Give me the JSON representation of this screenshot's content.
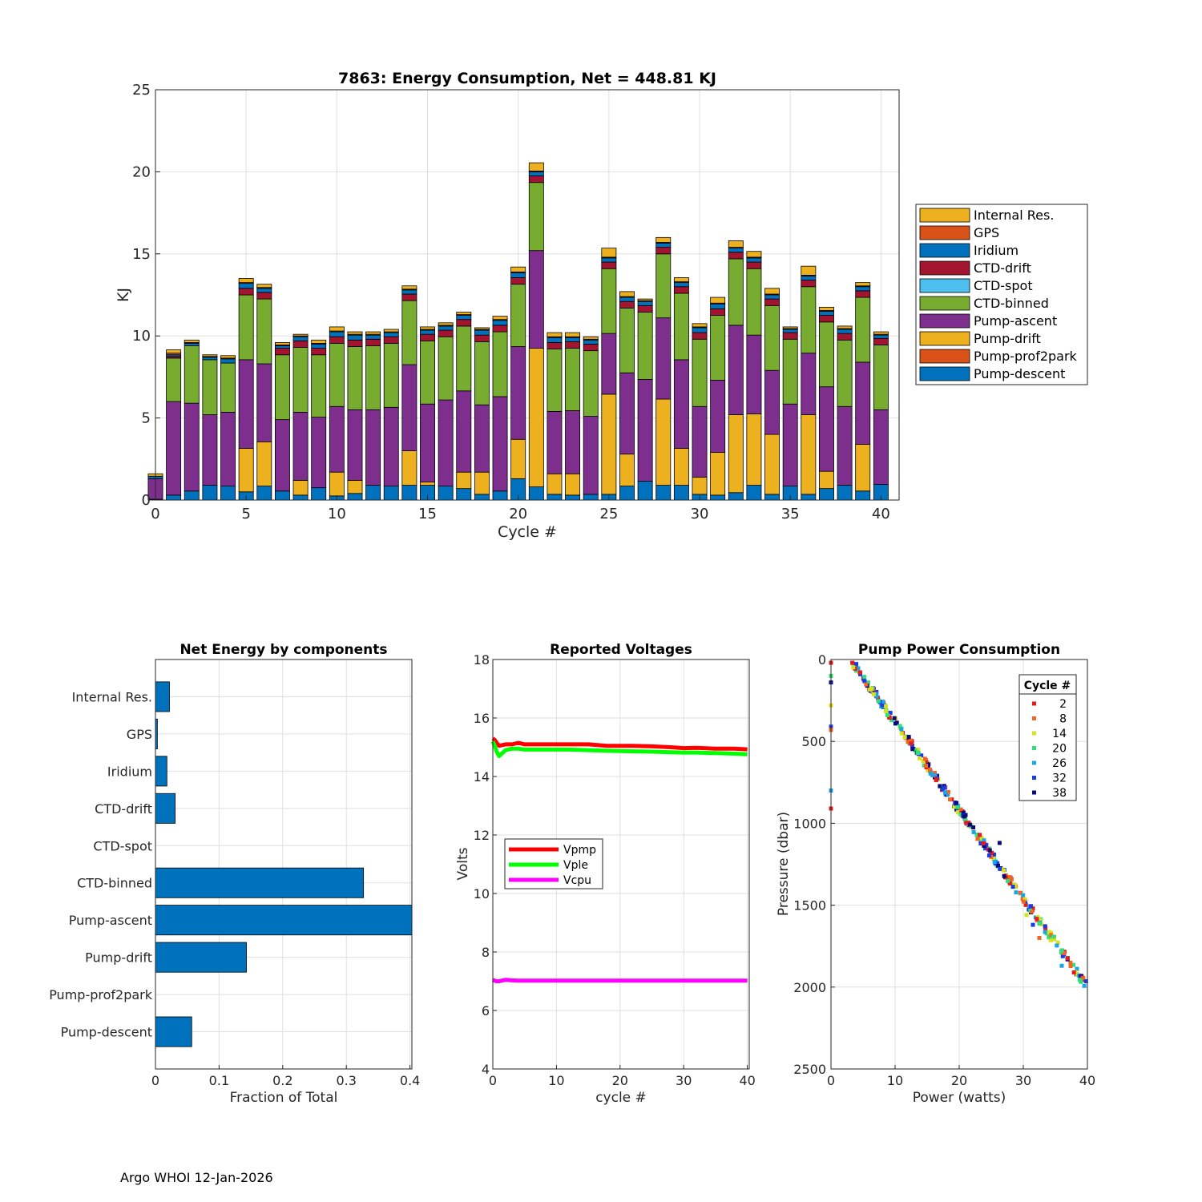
{
  "footer": "Argo WHOI 12-Jan-2026",
  "chart_data": [
    {
      "type": "bar",
      "stacked": true,
      "title": "7863: Energy Consumption,  Net = 448.81 KJ",
      "xlabel": "Cycle #",
      "ylabel": "KJ",
      "xlim": [
        0,
        41
      ],
      "ylim": [
        0,
        25
      ],
      "xticks": [
        0,
        5,
        10,
        15,
        20,
        25,
        30,
        35,
        40
      ],
      "yticks": [
        0,
        5,
        10,
        15,
        20,
        25
      ],
      "grid": true,
      "legend_position": "outside-right",
      "legend_order": [
        "Internal Res.",
        "GPS",
        "Iridium",
        "CTD-drift",
        "CTD-spot",
        "CTD-binned",
        "Pump-ascent",
        "Pump-drift",
        "Pump-prof2park",
        "Pump-descent"
      ],
      "categories": [
        0,
        1,
        2,
        3,
        4,
        5,
        6,
        7,
        8,
        9,
        10,
        11,
        12,
        13,
        14,
        15,
        16,
        17,
        18,
        19,
        20,
        21,
        22,
        23,
        24,
        25,
        26,
        27,
        28,
        29,
        30,
        31,
        32,
        33,
        34,
        35,
        36,
        37,
        38,
        39,
        40
      ],
      "series": [
        {
          "name": "Pump-descent",
          "color": "#0072BD",
          "values": [
            0.05,
            0.3,
            0.55,
            0.9,
            0.85,
            0.5,
            0.85,
            0.55,
            0.3,
            0.75,
            0.25,
            0.4,
            0.9,
            0.85,
            0.9,
            0.9,
            0.85,
            0.7,
            0.35,
            0.55,
            1.3,
            0.8,
            0.35,
            0.3,
            0.35,
            0.35,
            0.85,
            1.15,
            0.9,
            0.9,
            0.35,
            0.3,
            0.45,
            0.9,
            0.35,
            0.85,
            0.35,
            0.7,
            0.9,
            0.55,
            0.95
          ]
        },
        {
          "name": "Pump-prof2park",
          "color": "#D95319",
          "values": [
            0,
            0,
            0,
            0,
            0,
            0,
            0,
            0,
            0,
            0,
            0,
            0,
            0,
            0,
            0,
            0,
            0,
            0,
            0,
            0,
            0,
            0,
            0,
            0,
            0,
            0,
            0,
            0,
            0,
            0,
            0,
            0,
            0,
            0,
            0,
            0,
            0,
            0,
            0,
            0,
            0
          ]
        },
        {
          "name": "Pump-drift",
          "color": "#EDB120",
          "values": [
            0,
            0,
            0,
            0,
            0,
            2.65,
            2.7,
            0,
            0.9,
            0,
            1.45,
            0.8,
            0,
            0,
            2.1,
            0.2,
            0,
            1.0,
            1.35,
            0,
            2.4,
            8.45,
            1.25,
            1.3,
            0,
            6.1,
            1.95,
            0,
            5.25,
            2.25,
            1.05,
            2.6,
            4.75,
            4.35,
            3.65,
            0,
            4.85,
            1.05,
            0,
            2.85,
            0
          ]
        },
        {
          "name": "Pump-ascent",
          "color": "#7E2F8E",
          "values": [
            1.25,
            5.7,
            5.35,
            4.3,
            4.5,
            5.4,
            4.75,
            4.35,
            4.15,
            4.3,
            4.0,
            4.3,
            4.6,
            4.8,
            5.25,
            4.75,
            5.25,
            4.95,
            4.1,
            5.75,
            5.65,
            5.95,
            3.8,
            3.85,
            4.75,
            3.7,
            4.95,
            6.2,
            4.95,
            5.4,
            4.3,
            4.4,
            5.45,
            4.8,
            3.9,
            5.0,
            3.75,
            5.15,
            4.8,
            5.0,
            4.55
          ]
        },
        {
          "name": "CTD-binned",
          "color": "#77AC30",
          "values": [
            0,
            2.65,
            3.5,
            3.35,
            3.0,
            3.95,
            3.95,
            3.95,
            3.95,
            3.8,
            3.85,
            3.85,
            3.9,
            3.9,
            3.9,
            3.85,
            3.85,
            3.95,
            3.85,
            3.95,
            3.8,
            4.15,
            3.8,
            3.8,
            4.0,
            3.95,
            3.95,
            4.1,
            3.9,
            4.05,
            4.1,
            3.95,
            4.05,
            4.05,
            3.95,
            3.95,
            4.05,
            3.95,
            4.05,
            3.95,
            3.95
          ]
        },
        {
          "name": "CTD-spot",
          "color": "#4DBEEE",
          "values": [
            0,
            0,
            0,
            0,
            0,
            0,
            0,
            0,
            0,
            0,
            0,
            0,
            0,
            0,
            0,
            0,
            0,
            0,
            0,
            0,
            0,
            0,
            0,
            0,
            0,
            0,
            0,
            0,
            0,
            0,
            0,
            0,
            0,
            0,
            0,
            0,
            0,
            0,
            0,
            0,
            0
          ]
        },
        {
          "name": "CTD-drift",
          "color": "#A2142F",
          "values": [
            0,
            0.1,
            0,
            0,
            0,
            0.4,
            0.4,
            0.4,
            0.4,
            0.4,
            0.4,
            0.4,
            0.4,
            0.4,
            0.4,
            0.4,
            0.4,
            0.4,
            0.4,
            0.4,
            0.4,
            0.4,
            0.4,
            0.4,
            0.4,
            0.4,
            0.4,
            0.4,
            0.4,
            0.4,
            0.4,
            0.4,
            0.4,
            0.4,
            0.4,
            0.4,
            0.4,
            0.4,
            0.4,
            0.4,
            0.4
          ]
        },
        {
          "name": "Iridium",
          "color": "#0072BD",
          "values": [
            0.15,
            0.1,
            0.15,
            0.15,
            0.25,
            0.3,
            0.25,
            0.15,
            0.25,
            0.25,
            0.3,
            0.3,
            0.25,
            0.25,
            0.25,
            0.25,
            0.25,
            0.25,
            0.3,
            0.3,
            0.3,
            0.25,
            0.3,
            0.25,
            0.25,
            0.25,
            0.25,
            0.25,
            0.25,
            0.25,
            0.3,
            0.3,
            0.25,
            0.25,
            0.25,
            0.2,
            0.25,
            0.25,
            0.25,
            0.25,
            0.2
          ]
        },
        {
          "name": "GPS",
          "color": "#D95319",
          "values": [
            0,
            0.1,
            0.05,
            0.05,
            0.05,
            0.05,
            0.05,
            0.05,
            0.05,
            0.05,
            0.05,
            0.05,
            0.05,
            0.05,
            0.05,
            0.05,
            0.05,
            0.05,
            0.05,
            0.05,
            0.05,
            0.05,
            0.05,
            0.05,
            0.05,
            0.05,
            0.05,
            0.05,
            0.05,
            0.05,
            0.05,
            0.05,
            0.05,
            0.05,
            0.05,
            0.05,
            0.05,
            0.05,
            0.05,
            0.05,
            0.05
          ]
        },
        {
          "name": "Internal Res.",
          "color": "#EDB120",
          "values": [
            0.15,
            0.2,
            0.15,
            0.1,
            0.15,
            0.25,
            0.2,
            0.15,
            0.1,
            0.2,
            0.25,
            0.15,
            0.15,
            0.15,
            0.2,
            0.15,
            0.15,
            0.15,
            0.1,
            0.2,
            0.3,
            0.5,
            0.25,
            0.25,
            0.15,
            0.55,
            0.3,
            0.1,
            0.3,
            0.25,
            0.2,
            0.35,
            0.4,
            0.35,
            0.35,
            0.1,
            0.55,
            0.2,
            0.15,
            0.2,
            0.15
          ]
        }
      ]
    },
    {
      "type": "bar",
      "orientation": "horizontal",
      "title": "Net Energy by components",
      "xlabel": "Fraction of Total",
      "xlim": [
        0,
        0.4
      ],
      "xticks": [
        0,
        0.1,
        0.2,
        0.3,
        0.4
      ],
      "grid": true,
      "categories": [
        "Internal Res.",
        "GPS",
        "Iridium",
        "CTD-drift",
        "CTD-spot",
        "CTD-binned",
        "Pump-ascent",
        "Pump-drift",
        "Pump-prof2park",
        "Pump-descent"
      ],
      "values": [
        0.022,
        0.003,
        0.018,
        0.031,
        0,
        0.327,
        0.405,
        0.143,
        0,
        0.057
      ],
      "color": "#0072BD"
    },
    {
      "type": "line",
      "title": "Reported Voltages",
      "xlabel": "cycle #",
      "ylabel": "Volts",
      "xlim": [
        0,
        40
      ],
      "ylim": [
        4,
        18
      ],
      "xticks": [
        0,
        10,
        20,
        30,
        40
      ],
      "yticks": [
        4,
        6,
        8,
        10,
        12,
        14,
        16,
        18
      ],
      "grid": true,
      "legend_position": "middle-left",
      "series": [
        {
          "name": "Vpmp",
          "color": "#FF0000",
          "x": [
            0,
            0.3,
            0.6,
            1,
            2,
            3,
            4,
            5,
            6,
            8,
            10,
            12,
            15,
            18,
            20,
            22,
            25,
            28,
            30,
            32,
            35,
            38,
            40
          ],
          "values": [
            15.3,
            15.25,
            15.15,
            15.05,
            15.1,
            15.1,
            15.15,
            15.1,
            15.1,
            15.1,
            15.1,
            15.1,
            15.1,
            15.05,
            15.05,
            15.05,
            15.03,
            15.0,
            14.97,
            14.98,
            14.95,
            14.95,
            14.93
          ]
        },
        {
          "name": "Vple",
          "color": "#00FF00",
          "x": [
            0,
            0.3,
            0.6,
            1,
            1.5,
            2,
            3,
            4,
            5,
            6,
            8,
            10,
            12,
            15,
            18,
            20,
            22,
            25,
            28,
            30,
            32,
            35,
            38,
            40
          ],
          "values": [
            15.2,
            15.05,
            14.85,
            14.7,
            14.8,
            14.9,
            14.95,
            14.95,
            14.92,
            14.92,
            14.92,
            14.92,
            14.92,
            14.9,
            14.88,
            14.87,
            14.86,
            14.85,
            14.83,
            14.82,
            14.82,
            14.8,
            14.78,
            14.76
          ]
        },
        {
          "name": "Vcpu",
          "color": "#FF00FF",
          "x": [
            0,
            0.5,
            1,
            2,
            3,
            4,
            5,
            10,
            15,
            20,
            25,
            30,
            35,
            40
          ],
          "values": [
            7.05,
            7.0,
            7.0,
            7.05,
            7.03,
            7.02,
            7.02,
            7.02,
            7.02,
            7.02,
            7.02,
            7.02,
            7.02,
            7.02
          ]
        }
      ]
    },
    {
      "type": "scatter",
      "title": "Pump Power Consumption",
      "xlabel": "Power (watts)",
      "ylabel": "Pressure (dbar)",
      "xlim": [
        0,
        40
      ],
      "ylim": [
        0,
        2500
      ],
      "y_reversed": true,
      "xticks": [
        0,
        10,
        20,
        30,
        40
      ],
      "yticks": [
        0,
        500,
        1000,
        1500,
        2000,
        2500
      ],
      "grid": true,
      "legend_title": "Cycle #",
      "legend_position": "top-right",
      "trend": {
        "power_at_0dbar": 3.0,
        "power_at_2000dbar": 40.0
      },
      "series": [
        {
          "name": "2",
          "color": "#E8191A"
        },
        {
          "name": "8",
          "color": "#F26522"
        },
        {
          "name": "14",
          "color": "#D7E21A"
        },
        {
          "name": "20",
          "color": "#2FE07A"
        },
        {
          "name": "26",
          "color": "#1AA5E8"
        },
        {
          "name": "32",
          "color": "#1A3CE8"
        },
        {
          "name": "38",
          "color": "#0B0B7A"
        }
      ],
      "outliers": [
        {
          "x": 0,
          "y": 20
        },
        {
          "x": 0,
          "y": 100
        },
        {
          "x": 0,
          "y": 140
        },
        {
          "x": 0,
          "y": 280
        },
        {
          "x": 0,
          "y": 410
        },
        {
          "x": 0,
          "y": 430
        },
        {
          "x": 0,
          "y": 800
        },
        {
          "x": 0,
          "y": 910
        },
        {
          "x": 8.8,
          "y": 340
        },
        {
          "x": 26.3,
          "y": 1120
        },
        {
          "x": 30.5,
          "y": 1560
        },
        {
          "x": 31.5,
          "y": 1620
        },
        {
          "x": 32.5,
          "y": 1700
        },
        {
          "x": 36,
          "y": 1870
        }
      ]
    }
  ]
}
